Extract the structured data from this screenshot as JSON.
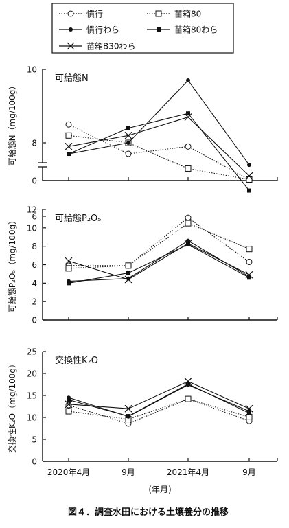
{
  "legend": {
    "entries": [
      {
        "label": "慣行",
        "series": 0
      },
      {
        "label": "苗箱80",
        "series": 1
      },
      {
        "label": "慣行わら",
        "series": 2
      },
      {
        "label": "苗箱80わら",
        "series": 3
      },
      {
        "label": "苗箱B30わら",
        "series": 4
      }
    ]
  },
  "series_styles": [
    {
      "line": "dotted",
      "marker": "open-circle"
    },
    {
      "line": "dotted",
      "marker": "open-square"
    },
    {
      "line": "solid",
      "marker": "filled-circle"
    },
    {
      "line": "solid",
      "marker": "filled-square"
    },
    {
      "line": "solid",
      "marker": "cross"
    }
  ],
  "x_axis": {
    "categories": [
      "2020年4月",
      "9月",
      "2021年4月",
      "9月"
    ],
    "xlabel": "(年月)"
  },
  "caption": "図４．調査水田における土壌養分の推移",
  "chart_data": [
    {
      "type": "line",
      "title": "可給態N",
      "ylabel": "可給態N（mg/100g）",
      "ylim": [
        0,
        10
      ],
      "axis_break": [
        0,
        5
      ],
      "yticks": [
        0,
        6,
        8,
        10
      ],
      "categories": [
        "2020年4月",
        "9月",
        "2021年4月",
        "9月"
      ],
      "series": [
        {
          "name": "慣行",
          "values": [
            8.5,
            7.7,
            7.9,
            7.0
          ]
        },
        {
          "name": "苗箱80",
          "values": [
            8.2,
            8.0,
            7.3,
            7.0
          ]
        },
        {
          "name": "慣行わら",
          "values": [
            7.7,
            8.0,
            9.7,
            7.4
          ]
        },
        {
          "name": "苗箱80わら",
          "values": [
            7.7,
            8.4,
            8.8,
            6.7
          ]
        },
        {
          "name": "苗箱B30わら",
          "values": [
            7.9,
            8.2,
            8.7,
            7.1
          ]
        }
      ]
    },
    {
      "type": "line",
      "title": "可給態P₂O₅",
      "ylabel": "可給態P₂O₅（mg/100g）",
      "ylim": [
        0,
        12
      ],
      "yticks": [
        0,
        2,
        4,
        6,
        8,
        10,
        12
      ],
      "categories": [
        "2020年4月",
        "9月",
        "2021年4月",
        "9月"
      ],
      "series": [
        {
          "name": "慣行",
          "values": [
            5.9,
            5.9,
            11.1,
            6.3
          ]
        },
        {
          "name": "苗箱80",
          "values": [
            5.6,
            5.9,
            10.5,
            7.7
          ]
        },
        {
          "name": "慣行わら",
          "values": [
            4.2,
            4.5,
            8.6,
            4.7
          ]
        },
        {
          "name": "苗箱80わら",
          "values": [
            4.0,
            5.1,
            8.2,
            4.6
          ]
        },
        {
          "name": "苗箱B30わら",
          "values": [
            6.4,
            4.4,
            8.3,
            4.9
          ]
        }
      ]
    },
    {
      "type": "line",
      "title": "交換性K₂O",
      "ylabel": "交換性K₂O（mg/100g）",
      "ylim": [
        0,
        25
      ],
      "yticks": [
        0,
        5,
        10,
        15,
        20,
        25
      ],
      "categories": [
        "2020年4月",
        "9月",
        "2021年4月",
        "9月"
      ],
      "series": [
        {
          "name": "慣行",
          "values": [
            12.8,
            8.6,
            14.2,
            9.2
          ]
        },
        {
          "name": "苗箱80",
          "values": [
            11.4,
            9.6,
            14.2,
            10.1
          ]
        },
        {
          "name": "慣行わら",
          "values": [
            14.5,
            10.2,
            17.4,
            11.4
          ]
        },
        {
          "name": "苗箱80わら",
          "values": [
            14.0,
            10.3,
            17.6,
            11.0
          ]
        },
        {
          "name": "苗箱B30わら",
          "values": [
            13.0,
            12.0,
            18.2,
            12.0
          ]
        }
      ]
    }
  ]
}
